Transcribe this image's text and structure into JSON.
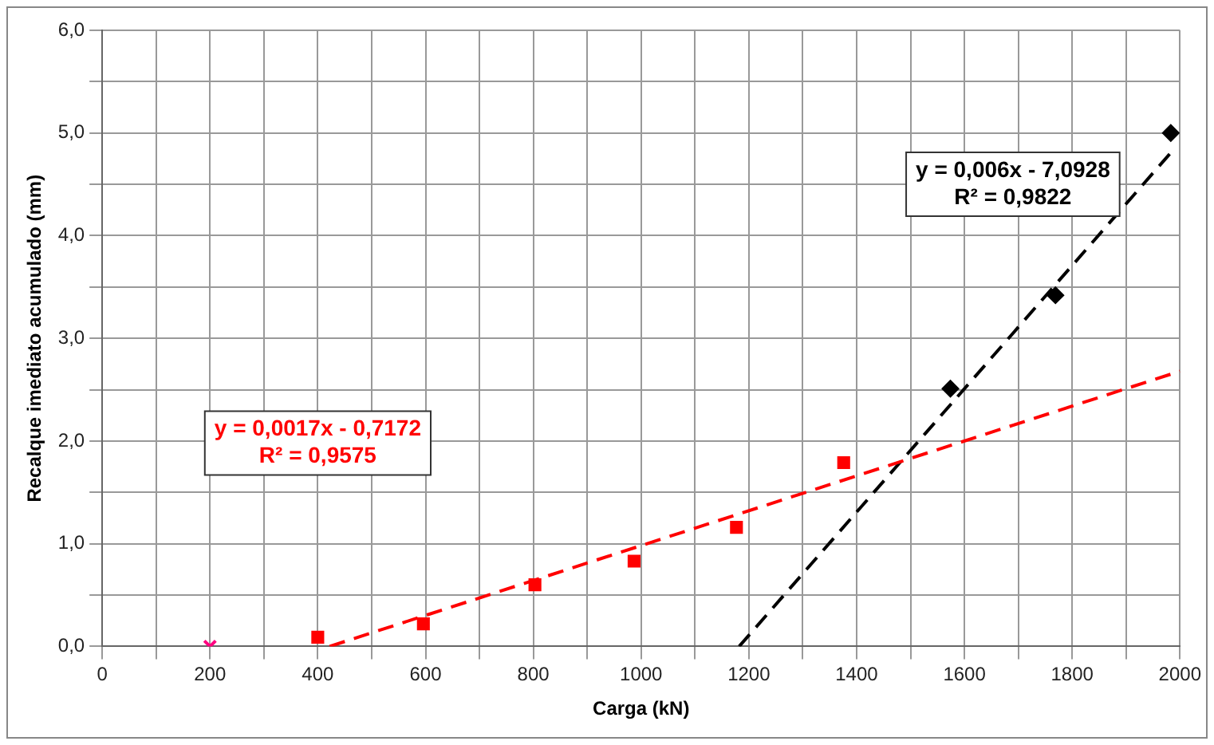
{
  "chart_data": {
    "type": "scatter",
    "xlabel": "Carga (kN)",
    "ylabel": "Recalque imediato acumulado (mm)",
    "xlim": [
      0,
      2000
    ],
    "xticks": [
      0,
      {
        "value": 100,
        "label": null
      },
      200,
      {
        "value": 300,
        "label": null
      },
      400,
      {
        "value": 500,
        "label": null
      },
      600,
      {
        "value": 700,
        "label": null
      },
      800,
      {
        "value": 900,
        "label": null
      },
      1000,
      {
        "value": 1100,
        "label": null
      },
      1200,
      {
        "value": 1300,
        "label": null
      },
      1400,
      {
        "value": 1500,
        "label": null
      },
      1600,
      {
        "value": 1700,
        "label": null
      },
      1800,
      {
        "value": 1900,
        "label": null
      },
      2000
    ],
    "ylim": [
      0,
      6
    ],
    "yticks": [
      {
        "value": 0,
        "label": "0,0"
      },
      {
        "value": 0.5,
        "label": null
      },
      {
        "value": 1,
        "label": "1,0"
      },
      {
        "value": 1.5,
        "label": null
      },
      {
        "value": 2,
        "label": "2,0"
      },
      {
        "value": 2.5,
        "label": null
      },
      {
        "value": 3,
        "label": "3,0"
      },
      {
        "value": 3.5,
        "label": null
      },
      {
        "value": 4,
        "label": "4,0"
      },
      {
        "value": 4.5,
        "label": null
      },
      {
        "value": 5,
        "label": "5,0"
      },
      {
        "value": 5.5,
        "label": null
      },
      {
        "value": 6,
        "label": "6,0"
      }
    ],
    "grid": true,
    "legend": false,
    "series": [
      {
        "color": "#ff0080",
        "marker": "cross",
        "x": [
          200
        ],
        "values": [
          0
        ]
      },
      {
        "color": "#ff0000",
        "marker": "square",
        "x": [
          400,
          596,
          803,
          987,
          1177,
          1376
        ],
        "values": [
          0.09,
          0.22,
          0.6,
          0.83,
          1.16,
          1.79
        ]
      },
      {
        "color": "#000000",
        "marker": "diamond",
        "x": [
          1574,
          1769,
          1983
        ],
        "values": [
          2.51,
          3.42,
          5.0
        ]
      },
      {
        "type": "line",
        "color": "#ff0000",
        "line_style": "dashed",
        "marker": "none",
        "x": [
          422,
          2000
        ],
        "values": [
          0,
          2.68
        ]
      },
      {
        "type": "line",
        "color": "#000000",
        "line_style": "dashed",
        "marker": "none",
        "x": [
          1182,
          1985
        ],
        "values": [
          0,
          4.82
        ]
      }
    ],
    "annotations": [
      "y = 0,0017x - 0,7172\nR² = 0,9575",
      "y = 0,006x - 7,0928\nR² = 0,9822"
    ]
  }
}
